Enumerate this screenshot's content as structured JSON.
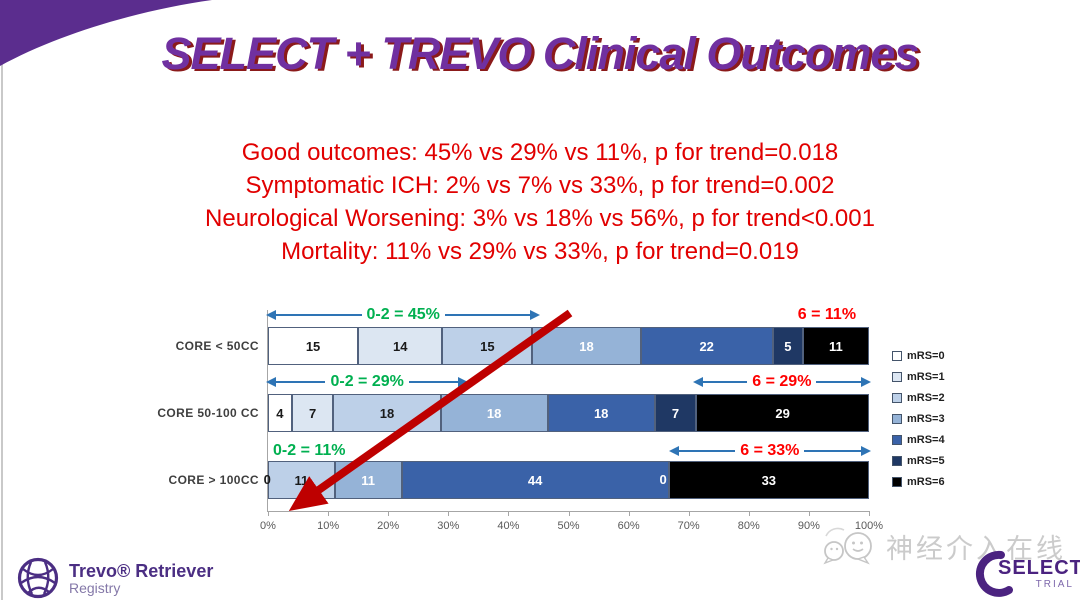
{
  "slide": {
    "title": "SELECT + TREVO Clinical Outcomes",
    "stats": [
      "Good outcomes: 45% vs 29% vs 11%, p for trend=0.018",
      "Symptomatic ICH: 2% vs 7% vs 33%, p for trend=0.002",
      "Neurological Worsening: 3% vs 18% vs 56%, p for trend<0.001",
      "Mortality: 11% vs 29% vs 33%, p for trend=0.019"
    ]
  },
  "chart_data": {
    "type": "bar",
    "variant": "100-percent-stacked-horizontal",
    "categories": [
      "CORE < 50CC",
      "CORE 50-100 CC",
      "CORE > 100CC"
    ],
    "series": [
      {
        "name": "mRS=0",
        "color": "#FFFFFF",
        "dark_label": true,
        "values": [
          15,
          4,
          0
        ]
      },
      {
        "name": "mRS=1",
        "color": "#DCE6F2",
        "dark_label": true,
        "values": [
          14,
          7,
          0
        ]
      },
      {
        "name": "mRS=2",
        "color": "#BDD0E8",
        "dark_label": true,
        "values": [
          15,
          18,
          11
        ]
      },
      {
        "name": "mRS=3",
        "color": "#95B3D7",
        "dark_label": false,
        "values": [
          18,
          18,
          11
        ]
      },
      {
        "name": "mRS=4",
        "color": "#3A62A8",
        "dark_label": false,
        "values": [
          22,
          18,
          44
        ]
      },
      {
        "name": "mRS=5",
        "color": "#1F3864",
        "dark_label": false,
        "values": [
          5,
          7,
          0
        ]
      },
      {
        "name": "mRS=6",
        "color": "#000000",
        "dark_label": false,
        "values": [
          11,
          29,
          33
        ]
      }
    ],
    "x_ticks": [
      "0%",
      "10%",
      "20%",
      "30%",
      "40%",
      "50%",
      "60%",
      "70%",
      "80%",
      "90%",
      "100%"
    ],
    "legend_position": "right",
    "row_annotations": [
      {
        "left": {
          "text": "0-2 = 45%",
          "from": 0,
          "to": 45,
          "arrow": true,
          "color": "#00B050"
        },
        "right": {
          "text": "6 = 11%",
          "from": 86,
          "to": 100,
          "arrow": false,
          "color": "#FF0000"
        }
      },
      {
        "left": {
          "text": "0-2 = 29%",
          "from": 0,
          "to": 33,
          "arrow": true,
          "color": "#00B050"
        },
        "right": {
          "text": "6 = 29%",
          "from": 71,
          "to": 100,
          "arrow": true,
          "color": "#FF0000"
        }
      },
      {
        "left": {
          "text": "0-2 = 11%",
          "from": 0,
          "to": 22,
          "arrow": false,
          "color": "#00B050"
        },
        "right": {
          "text": "6 = 33%",
          "from": 67,
          "to": 100,
          "arrow": true,
          "color": "#FF0000"
        }
      }
    ],
    "extra_zero_labels": [
      {
        "row": 2,
        "pct": 0,
        "text": "0",
        "light": false
      },
      {
        "row": 2,
        "pct": 66.7,
        "text": "0",
        "light": true
      }
    ]
  },
  "footer": {
    "trevo_name": "Trevo® Retriever",
    "trevo_sub": "Registry",
    "watermark": "神经介入在线",
    "select_name": "SELECT",
    "select_sub": "TRIAL"
  },
  "colors": {
    "title": "#7030A0",
    "stats": "#E10000",
    "arrow_blue": "#2E74B5",
    "trend_arrow": "#BE0000",
    "corner": "#5B2D8E"
  }
}
